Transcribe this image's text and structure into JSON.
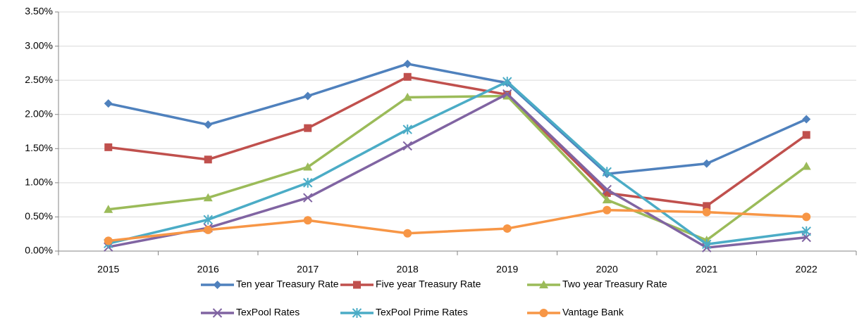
{
  "chart_data": {
    "type": "line",
    "categories": [
      "2015",
      "2016",
      "2017",
      "2018",
      "2019",
      "2020",
      "2021",
      "2022"
    ],
    "series": [
      {
        "name": "Ten year Treasury Rate",
        "color": "#4f81bd",
        "marker": "diamond",
        "values": [
          2.16,
          1.85,
          2.27,
          2.74,
          2.46,
          1.13,
          1.28,
          1.93
        ]
      },
      {
        "name": "Five year Treasury Rate",
        "color": "#c0504d",
        "marker": "square",
        "values": [
          1.52,
          1.34,
          1.8,
          2.55,
          2.29,
          0.85,
          0.66,
          1.7
        ]
      },
      {
        "name": "Two year Treasury Rate",
        "color": "#9bbb59",
        "marker": "triangle",
        "values": [
          0.61,
          0.78,
          1.23,
          2.25,
          2.27,
          0.75,
          0.16,
          1.24
        ]
      },
      {
        "name": "TexPool Rates",
        "color": "#8064a2",
        "marker": "x",
        "values": [
          0.06,
          0.34,
          0.78,
          1.54,
          2.3,
          0.9,
          0.05,
          0.2
        ]
      },
      {
        "name": "TexPool Prime Rates",
        "color": "#4bacc6",
        "marker": "star",
        "values": [
          0.11,
          0.46,
          1.0,
          1.78,
          2.48,
          1.16,
          0.1,
          0.29
        ]
      },
      {
        "name": "Vantage Bank",
        "color": "#f79646",
        "marker": "circle",
        "values": [
          0.15,
          0.31,
          0.45,
          0.26,
          0.33,
          0.6,
          0.57,
          0.5
        ]
      }
    ],
    "ylim": [
      0,
      3.5
    ],
    "yticks": [
      {
        "value": 0,
        "label": "0.00%"
      },
      {
        "value": 0.5,
        "label": "0.50%"
      },
      {
        "value": 1,
        "label": "1.00%"
      },
      {
        "value": 1.5,
        "label": "1.50%"
      },
      {
        "value": 2,
        "label": "2.00%"
      },
      {
        "value": 2.5,
        "label": "2.50%"
      },
      {
        "value": 3,
        "label": "3.00%"
      },
      {
        "value": 3.5,
        "label": "3.50%"
      }
    ],
    "grid": true
  }
}
